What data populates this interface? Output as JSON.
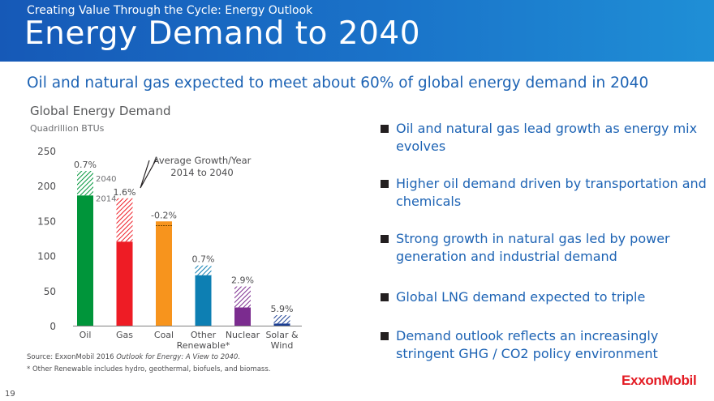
{
  "header": {
    "kicker": "Creating Value Through the Cycle: Energy Outlook",
    "title": "Energy Demand to 2040"
  },
  "subtitle": "Oil and natural gas expected to meet about 60% of global energy demand in 2040",
  "chart_data": {
    "type": "bar",
    "title": "Global Energy Demand",
    "ylabel": "Quadrillion BTUs",
    "xlabel": "",
    "ylim": [
      0,
      250
    ],
    "yticks": [
      "250",
      "200",
      "150",
      "100",
      "50",
      "0"
    ],
    "categories": [
      "Oil",
      "Gas",
      "Coal",
      "Other Renewable*",
      "Nuclear",
      "Solar & Wind"
    ],
    "category_lines": [
      [
        "Oil"
      ],
      [
        "Gas"
      ],
      [
        "Coal"
      ],
      [
        "Other",
        "Renewable*"
      ],
      [
        "Nuclear"
      ],
      [
        "Solar &",
        "Wind"
      ]
    ],
    "series": [
      {
        "name": "2014",
        "values": [
          186,
          120,
          149,
          72,
          26,
          3
        ]
      },
      {
        "name": "2040",
        "values": [
          221,
          182,
          143,
          86,
          56,
          15
        ]
      }
    ],
    "growth_labels": [
      "0.7%",
      "1.6%",
      "-0.2%",
      "0.7%",
      "2.9%",
      "5.9%"
    ],
    "series_labels": [
      "2014",
      "2040"
    ],
    "callout": {
      "line1": "Average Growth/Year",
      "line2": "2014 to 2040"
    },
    "colors": [
      "#00953a",
      "#ee1c25",
      "#f7941d",
      "#0d7fb3",
      "#7b2c8f",
      "#1c3f94"
    ]
  },
  "source": {
    "prefix": "Source: ExxonMobil 2016 ",
    "italic": "Outlook for Energy: A View to 2040.",
    "footnote": "* Other Renewable includes hydro, geothermal, biofuels, and biomass."
  },
  "bullets": [
    "Oil and natural gas lead growth as energy mix evolves",
    "Higher oil demand driven by transportation and chemicals",
    "Strong growth in natural gas led by power generation and industrial demand",
    "Global LNG demand expected to triple",
    "Demand outlook reflects an increasingly stringent GHG / CO2 policy environment"
  ],
  "page_number": "19",
  "logo": "ExxonMobil"
}
